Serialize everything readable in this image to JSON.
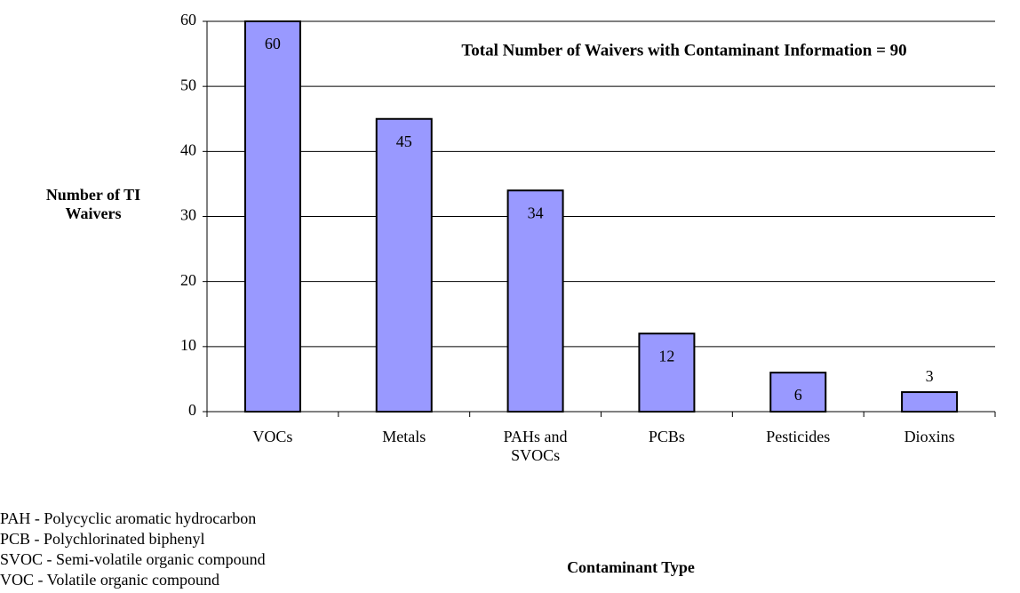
{
  "chart_data": {
    "type": "bar",
    "annotation": "Total Number of Waivers with Contaminant Information = 90",
    "y_label": "Number of TI Waivers",
    "x_label": "Contaminant Type",
    "categories": [
      "VOCs",
      "Metals",
      "PAHs and SVOCs",
      "PCBs",
      "Pesticides",
      "Dioxins"
    ],
    "values": [
      60,
      45,
      34,
      12,
      6,
      3
    ],
    "color": "#9999ff",
    "ylim": [
      0,
      60
    ],
    "yticks": [
      0,
      10,
      20,
      30,
      40,
      50,
      60
    ],
    "grid": true,
    "footnotes": [
      "PAH - Polycyclic aromatic hydrocarbon",
      "PCB - Polychlorinated biphenyl",
      "SVOC - Semi-volatile organic compound",
      "VOC - Volatile organic compound"
    ]
  }
}
